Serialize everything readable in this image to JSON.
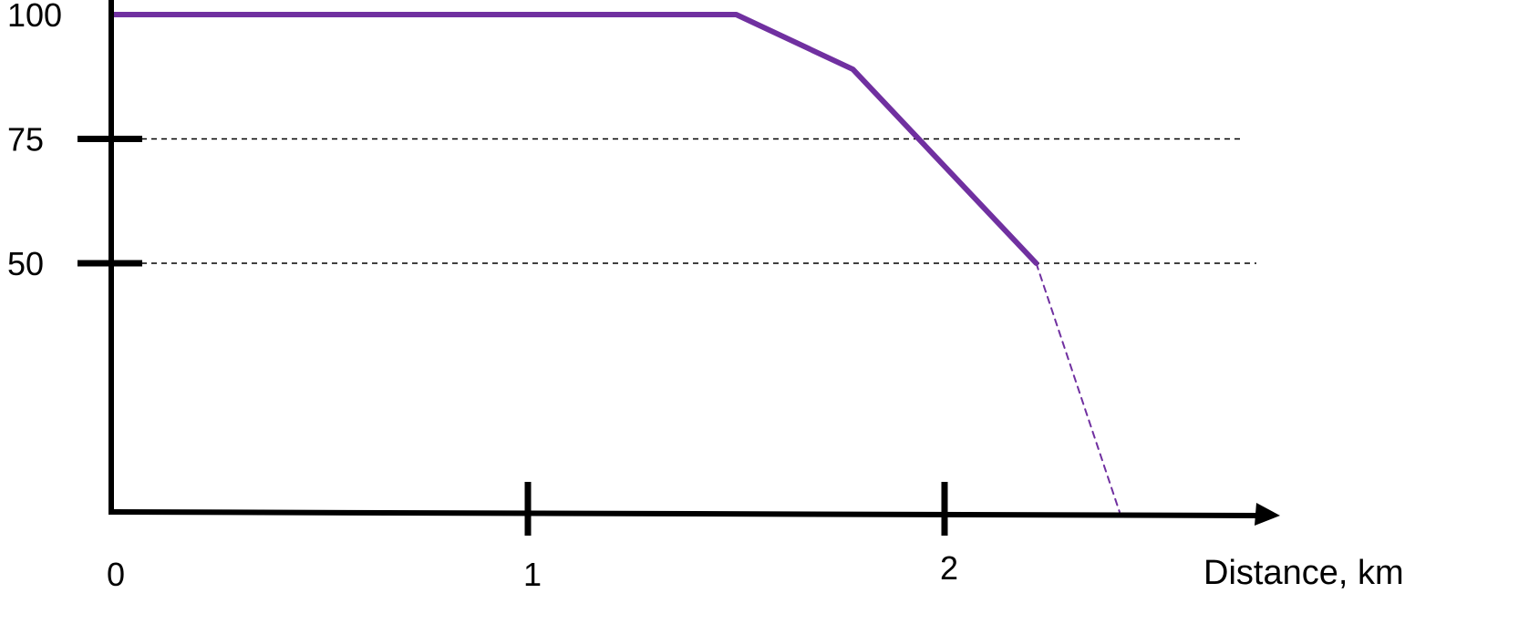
{
  "chart_data": {
    "type": "line",
    "title": "",
    "xlabel": "Distance, km",
    "ylabel": "",
    "xlim": [
      0,
      2.9
    ],
    "ylim": [
      0,
      105
    ],
    "x_ticks": [
      0,
      1,
      2
    ],
    "x_tick_labels": [
      "0",
      "1",
      "2"
    ],
    "y_ticks": [
      100,
      75,
      50
    ],
    "y_tick_labels": [
      "100",
      "75",
      "50"
    ],
    "grid": "dashed horizontal lines at 75 and 50",
    "legend": "none",
    "series": [
      {
        "style": "solid",
        "color": "#7030a0",
        "x": [
          0,
          1.5,
          1.78,
          2.22
        ],
        "y": [
          100,
          100,
          89,
          50
        ]
      },
      {
        "style": "dashed",
        "color": "#7030a0",
        "x": [
          2.22,
          2.42
        ],
        "y": [
          50,
          0
        ]
      }
    ]
  },
  "colors": {
    "axis": "#000000",
    "gridline": "#000000",
    "series": "#7030a0"
  }
}
